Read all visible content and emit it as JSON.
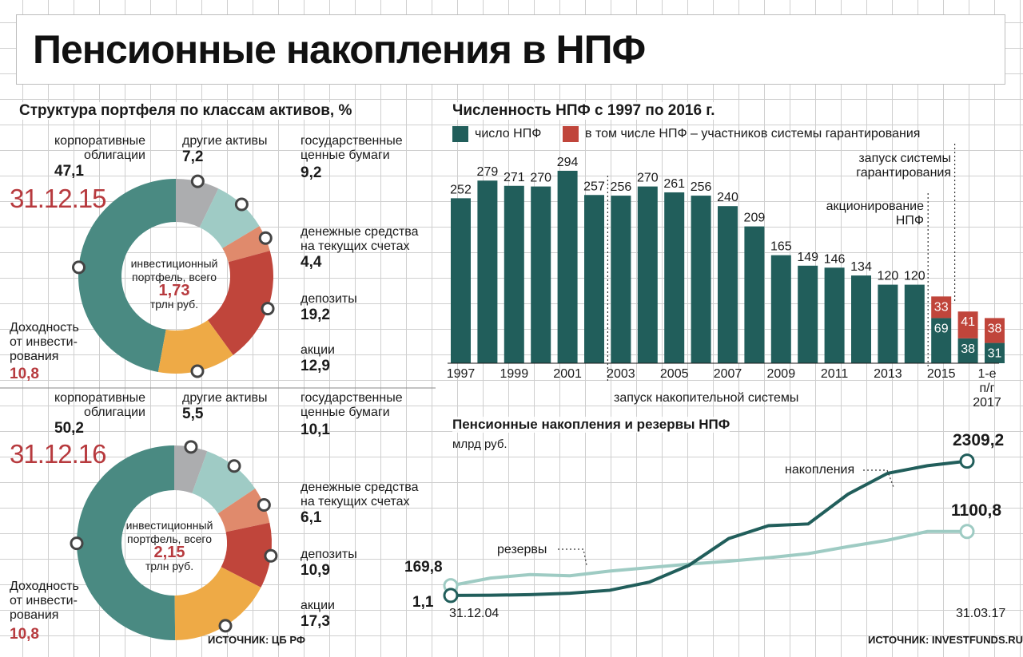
{
  "title": "Пенсионные накопления в НПФ",
  "colors": {
    "corporate": "#4a8a82",
    "other": "#acadaf",
    "gov": "#9fcbc5",
    "cash": "#e08a6c",
    "deposits": "#c0453b",
    "stocks": "#eeaa46",
    "dark_teal": "#215e5b",
    "light_teal": "#9ecbc3",
    "red": "#b73a3e"
  },
  "portfolio": {
    "heading": "Структура портфеля по классам активов, %",
    "center_label_1": "инвестиционный",
    "center_label_2": "портфель, всего",
    "center_unit": "трлн руб.",
    "return_label_1": "Доходность",
    "return_label_2": "от инвести-",
    "return_label_3": "рования",
    "labels": {
      "corporate_1": "корпоративные",
      "corporate_2": "облигации",
      "other": "другие активы",
      "gov_1": "государственные",
      "gov_2": "ценные бумаги",
      "cash_1": "денежные средства",
      "cash_2": "на текущих счетах",
      "deposits": "депозиты",
      "stocks": "акции"
    },
    "source": "ИСТОЧНИК: ЦБ РФ"
  },
  "donut_2015": {
    "date": "31.12.15",
    "total": "1,73",
    "return_value": "10,8",
    "corporate": "47,1",
    "other": "7,2",
    "gov": "9,2",
    "cash": "4,4",
    "deposits": "19,2",
    "stocks": "12,9"
  },
  "donut_2016": {
    "date": "31.12.16",
    "total": "2,15",
    "return_value": "10,8",
    "corporate": "50,2",
    "other": "5,5",
    "gov": "10,1",
    "cash": "6,1",
    "deposits": "10,9",
    "stocks": "17,3"
  },
  "npf_count": {
    "heading": "Численность НПФ с 1997 по 2016 г.",
    "legend_total": "число НПФ",
    "legend_guaranteed": "в том числе НПФ – участников системы гарантирования",
    "note_guarantee_1": "запуск системы",
    "note_guarantee_2": "гарантирования",
    "note_corp_1": "акционирование",
    "note_corp_2": "НПФ",
    "note_accum": "запуск накопительной системы",
    "last_label_1": "1-е",
    "last_label_2": "п/г",
    "last_label_3": "2017"
  },
  "pension_savings": {
    "heading": "Пенсионные накопления и резервы НПФ",
    "unit": "млрд руб.",
    "series_savings": "накопления",
    "series_reserves": "резервы",
    "start_date": "31.12.04",
    "end_date": "31.03.17",
    "savings_start": "1,1",
    "reserves_start": "169,8",
    "savings_end": "2309,2",
    "reserves_end": "1100,8",
    "source": "ИСТОЧНИК: INVESTFUNDS.RU"
  },
  "chart_data": [
    {
      "type": "pie",
      "date": "31.12.15",
      "categories": [
        "корпоративные облигации",
        "другие активы",
        "государственные ценные бумаги",
        "денежные средства на текущих счетах",
        "депозиты",
        "акции"
      ],
      "values": [
        47.1,
        7.2,
        9.2,
        4.4,
        19.2,
        12.9
      ],
      "total": 1.73
    },
    {
      "type": "pie",
      "date": "31.12.16",
      "categories": [
        "корпоративные облигации",
        "другие активы",
        "государственные ценные бумаги",
        "денежные средства на текущих счетах",
        "депозиты",
        "акции"
      ],
      "values": [
        50.2,
        5.5,
        10.1,
        6.1,
        10.9,
        17.3
      ],
      "total": 2.15
    },
    {
      "type": "bar",
      "title": "Численность НПФ с 1997 по 2016 г.",
      "categories": [
        "1997",
        "1998",
        "1999",
        "2000",
        "2001",
        "2002",
        "2003",
        "2004",
        "2005",
        "2006",
        "2007",
        "2008",
        "2009",
        "2010",
        "2011",
        "2012",
        "2013",
        "2014",
        "2015",
        "2016",
        "1-е п/г 2017"
      ],
      "tick_labels": [
        "1997",
        "",
        "1999",
        "",
        "2001",
        "",
        "2003",
        "",
        "2005",
        "",
        "2007",
        "",
        "2009",
        "",
        "2011",
        "",
        "2013",
        "",
        "2015",
        "",
        ""
      ],
      "series": [
        {
          "name": "число НПФ",
          "values": [
            252,
            279,
            271,
            270,
            294,
            257,
            256,
            270,
            261,
            256,
            240,
            209,
            165,
            149,
            146,
            134,
            120,
            120,
            69,
            38,
            31
          ]
        },
        {
          "name": "в том числе НПФ – участников системы гарантирования",
          "values": [
            null,
            null,
            null,
            null,
            null,
            null,
            null,
            null,
            null,
            null,
            null,
            null,
            null,
            null,
            null,
            null,
            null,
            null,
            33,
            41,
            38
          ]
        }
      ],
      "stacked": true,
      "ylim": [
        0,
        320
      ]
    },
    {
      "type": "line",
      "title": "Пенсионные накопления и резервы НПФ",
      "ylabel": "млрд руб.",
      "x": [
        "2004",
        "2005",
        "2006",
        "2007",
        "2008",
        "2009",
        "2010",
        "2011",
        "2012",
        "2013",
        "2014",
        "2015",
        "2016",
        "2017"
      ],
      "series": [
        {
          "name": "накопления",
          "values": [
            1.1,
            5,
            15,
            40,
            90,
            230,
            520,
            980,
            1200,
            1230,
            1740,
            2100,
            2230,
            2309.2
          ]
        },
        {
          "name": "резервы",
          "values": [
            169.8,
            300,
            360,
            340,
            420,
            480,
            540,
            590,
            650,
            720,
            840,
            950,
            1100,
            1100.8
          ]
        }
      ],
      "ylim": [
        0,
        2400
      ]
    }
  ]
}
